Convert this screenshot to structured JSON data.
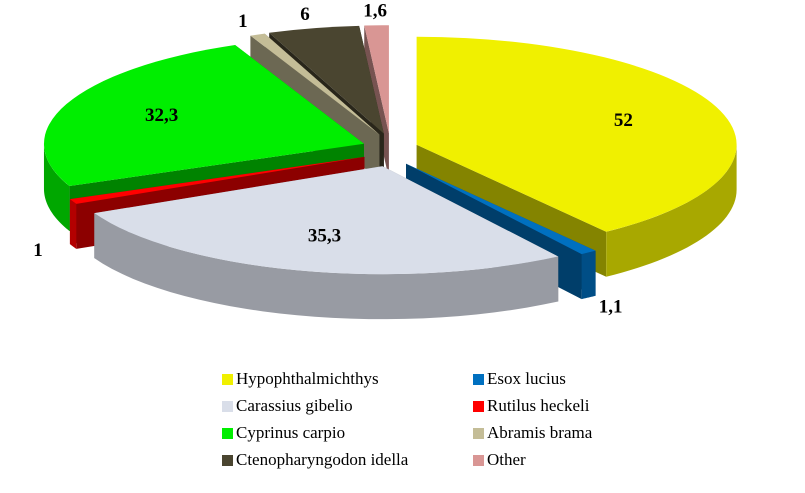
{
  "chart_data": {
    "type": "pie",
    "categories": [
      "Hypophthalmichthys",
      "Esox lucius",
      "Carassius gibelio",
      "Rutilus heckeli",
      "Cyprinus carpio",
      "Abramis brama",
      "Ctenopharyngodon idella",
      "Other"
    ],
    "values": [
      52,
      1.1,
      35.3,
      1,
      32.3,
      1,
      6,
      1.6
    ],
    "value_labels": [
      "52",
      "1,1",
      "35,3",
      "1",
      "32,3",
      "1",
      "6",
      "1,6"
    ],
    "colors": [
      "#f0f000",
      "#0070c0",
      "#d9dee9",
      "#ff0000",
      "#00ee00",
      "#c4bd97",
      "#4a4530",
      "#d99694"
    ]
  }
}
